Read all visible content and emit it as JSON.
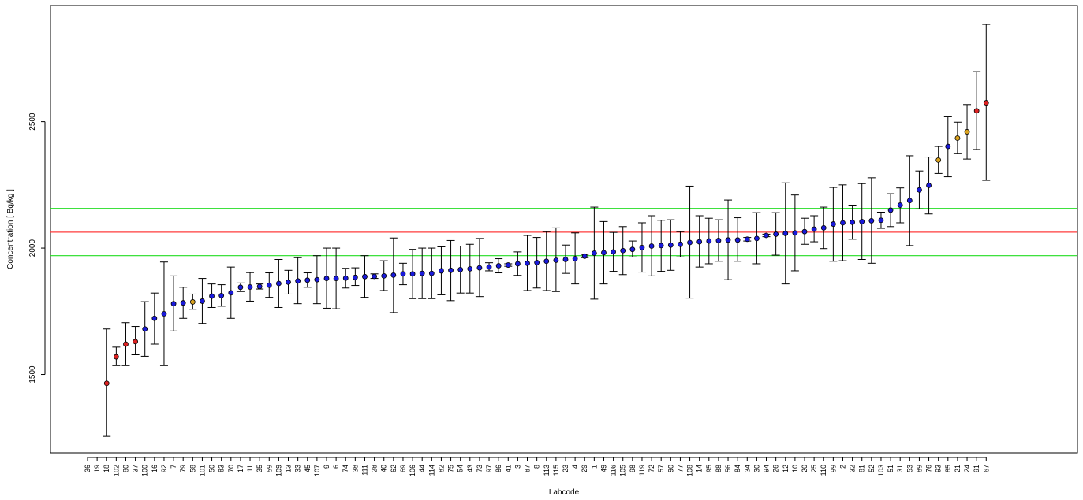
{
  "chart_data": {
    "type": "scatter",
    "xlabel": "Labcode",
    "ylabel": "Concentration [ Bq/kg ]",
    "ylim": [
      1190,
      2960
    ],
    "yticks": [
      1500,
      2000,
      2500
    ],
    "grid": false,
    "legend": "none",
    "reference_lines": [
      {
        "name": "reference value",
        "value": 2063,
        "color": "#ff3b3b"
      },
      {
        "name": "upper limit",
        "value": 2157,
        "color": "#22dd22"
      },
      {
        "name": "lower limit",
        "value": 1970,
        "color": "#22dd22"
      }
    ],
    "marker_colors": {
      "blue": "#1a1adb",
      "red": "#dd2222",
      "orange": "#d9a21f"
    },
    "points": [
      {
        "lab": "36",
        "value": null,
        "lo": null,
        "hi": null,
        "color": "blue"
      },
      {
        "lab": "19",
        "value": null,
        "lo": null,
        "hi": null,
        "color": "blue"
      },
      {
        "lab": "18",
        "value": 1465,
        "lo": 1255,
        "hi": 1680,
        "color": "red"
      },
      {
        "lab": "102",
        "value": 1570,
        "lo": 1535,
        "hi": 1608,
        "color": "red"
      },
      {
        "lab": "80",
        "value": 1620,
        "lo": 1535,
        "hi": 1705,
        "color": "red"
      },
      {
        "lab": "37",
        "value": 1630,
        "lo": 1578,
        "hi": 1690,
        "color": "red"
      },
      {
        "lab": "100",
        "value": 1680,
        "lo": 1572,
        "hi": 1788,
        "color": "blue"
      },
      {
        "lab": "16",
        "value": 1722,
        "lo": 1620,
        "hi": 1822,
        "color": "blue"
      },
      {
        "lab": "92",
        "value": 1740,
        "lo": 1535,
        "hi": 1945,
        "color": "blue"
      },
      {
        "lab": "7",
        "value": 1780,
        "lo": 1672,
        "hi": 1890,
        "color": "blue"
      },
      {
        "lab": "79",
        "value": 1783,
        "lo": 1722,
        "hi": 1845,
        "color": "blue"
      },
      {
        "lab": "58",
        "value": 1787,
        "lo": 1758,
        "hi": 1818,
        "color": "orange"
      },
      {
        "lab": "101",
        "value": 1790,
        "lo": 1702,
        "hi": 1880,
        "color": "blue"
      },
      {
        "lab": "50",
        "value": 1810,
        "lo": 1765,
        "hi": 1858,
        "color": "blue"
      },
      {
        "lab": "83",
        "value": 1812,
        "lo": 1770,
        "hi": 1855,
        "color": "blue"
      },
      {
        "lab": "70",
        "value": 1823,
        "lo": 1722,
        "hi": 1925,
        "color": "blue"
      },
      {
        "lab": "17",
        "value": 1845,
        "lo": 1828,
        "hi": 1862,
        "color": "blue"
      },
      {
        "lab": "11",
        "value": 1846,
        "lo": 1790,
        "hi": 1903,
        "color": "blue"
      },
      {
        "lab": "35",
        "value": 1848,
        "lo": 1838,
        "hi": 1858,
        "color": "blue"
      },
      {
        "lab": "59",
        "value": 1853,
        "lo": 1805,
        "hi": 1902,
        "color": "blue"
      },
      {
        "lab": "109",
        "value": 1860,
        "lo": 1765,
        "hi": 1955,
        "color": "blue"
      },
      {
        "lab": "13",
        "value": 1865,
        "lo": 1818,
        "hi": 1912,
        "color": "blue"
      },
      {
        "lab": "33",
        "value": 1870,
        "lo": 1780,
        "hi": 1962,
        "color": "blue"
      },
      {
        "lab": "45",
        "value": 1873,
        "lo": 1845,
        "hi": 1902,
        "color": "blue"
      },
      {
        "lab": "107",
        "value": 1875,
        "lo": 1780,
        "hi": 1970,
        "color": "blue"
      },
      {
        "lab": "9",
        "value": 1880,
        "lo": 1762,
        "hi": 2000,
        "color": "blue"
      },
      {
        "lab": "6",
        "value": 1880,
        "lo": 1760,
        "hi": 2000,
        "color": "blue"
      },
      {
        "lab": "74",
        "value": 1881,
        "lo": 1842,
        "hi": 1920,
        "color": "blue"
      },
      {
        "lab": "38",
        "value": 1884,
        "lo": 1852,
        "hi": 1922,
        "color": "blue"
      },
      {
        "lab": "111",
        "value": 1887,
        "lo": 1805,
        "hi": 1970,
        "color": "blue"
      },
      {
        "lab": "28",
        "value": 1888,
        "lo": 1880,
        "hi": 1898,
        "color": "blue"
      },
      {
        "lab": "40",
        "value": 1890,
        "lo": 1832,
        "hi": 1950,
        "color": "blue"
      },
      {
        "lab": "62",
        "value": 1893,
        "lo": 1745,
        "hi": 2040,
        "color": "blue"
      },
      {
        "lab": "69",
        "value": 1898,
        "lo": 1855,
        "hi": 1940,
        "color": "blue"
      },
      {
        "lab": "106",
        "value": 1898,
        "lo": 1800,
        "hi": 1995,
        "color": "blue"
      },
      {
        "lab": "44",
        "value": 1900,
        "lo": 1800,
        "hi": 2000,
        "color": "blue"
      },
      {
        "lab": "114",
        "value": 1900,
        "lo": 1800,
        "hi": 2000,
        "color": "blue"
      },
      {
        "lab": "82",
        "value": 1910,
        "lo": 1815,
        "hi": 2005,
        "color": "blue"
      },
      {
        "lab": "75",
        "value": 1912,
        "lo": 1792,
        "hi": 2030,
        "color": "blue"
      },
      {
        "lab": "54",
        "value": 1915,
        "lo": 1822,
        "hi": 2008,
        "color": "blue"
      },
      {
        "lab": "43",
        "value": 1918,
        "lo": 1822,
        "hi": 2015,
        "color": "blue"
      },
      {
        "lab": "73",
        "value": 1922,
        "lo": 1808,
        "hi": 2038,
        "color": "blue"
      },
      {
        "lab": "97",
        "value": 1925,
        "lo": 1910,
        "hi": 1942,
        "color": "blue"
      },
      {
        "lab": "86",
        "value": 1930,
        "lo": 1902,
        "hi": 1958,
        "color": "blue"
      },
      {
        "lab": "41",
        "value": 1933,
        "lo": 1928,
        "hi": 1938,
        "color": "blue"
      },
      {
        "lab": "3",
        "value": 1938,
        "lo": 1892,
        "hi": 1985,
        "color": "blue"
      },
      {
        "lab": "87",
        "value": 1940,
        "lo": 1832,
        "hi": 2050,
        "color": "blue"
      },
      {
        "lab": "8",
        "value": 1943,
        "lo": 1842,
        "hi": 2042,
        "color": "blue"
      },
      {
        "lab": "113",
        "value": 1948,
        "lo": 1832,
        "hi": 2065,
        "color": "blue"
      },
      {
        "lab": "115",
        "value": 1952,
        "lo": 1828,
        "hi": 2080,
        "color": "blue"
      },
      {
        "lab": "23",
        "value": 1955,
        "lo": 1900,
        "hi": 2012,
        "color": "blue"
      },
      {
        "lab": "4",
        "value": 1958,
        "lo": 1858,
        "hi": 2060,
        "color": "blue"
      },
      {
        "lab": "29",
        "value": 1968,
        "lo": 1962,
        "hi": 1975,
        "color": "blue"
      },
      {
        "lab": "1",
        "value": 1980,
        "lo": 1798,
        "hi": 2162,
        "color": "blue"
      },
      {
        "lab": "49",
        "value": 1982,
        "lo": 1858,
        "hi": 2105,
        "color": "blue"
      },
      {
        "lab": "116",
        "value": 1985,
        "lo": 1908,
        "hi": 2062,
        "color": "blue"
      },
      {
        "lab": "105",
        "value": 1990,
        "lo": 1895,
        "hi": 2085,
        "color": "blue"
      },
      {
        "lab": "98",
        "value": 1995,
        "lo": 1965,
        "hi": 2028,
        "color": "blue"
      },
      {
        "lab": "119",
        "value": 2002,
        "lo": 1905,
        "hi": 2100,
        "color": "blue"
      },
      {
        "lab": "72",
        "value": 2008,
        "lo": 1890,
        "hi": 2128,
        "color": "blue"
      },
      {
        "lab": "57",
        "value": 2010,
        "lo": 1908,
        "hi": 2110,
        "color": "blue"
      },
      {
        "lab": "90",
        "value": 2012,
        "lo": 1912,
        "hi": 2112,
        "color": "blue"
      },
      {
        "lab": "77",
        "value": 2015,
        "lo": 1965,
        "hi": 2065,
        "color": "blue"
      },
      {
        "lab": "108",
        "value": 2022,
        "lo": 1802,
        "hi": 2245,
        "color": "blue"
      },
      {
        "lab": "14",
        "value": 2025,
        "lo": 1925,
        "hi": 2128,
        "color": "blue"
      },
      {
        "lab": "95",
        "value": 2028,
        "lo": 1938,
        "hi": 2118,
        "color": "blue"
      },
      {
        "lab": "88",
        "value": 2030,
        "lo": 1948,
        "hi": 2112,
        "color": "blue"
      },
      {
        "lab": "56",
        "value": 2032,
        "lo": 1875,
        "hi": 2190,
        "color": "blue"
      },
      {
        "lab": "84",
        "value": 2032,
        "lo": 1948,
        "hi": 2120,
        "color": "blue"
      },
      {
        "lab": "34",
        "value": 2035,
        "lo": 2028,
        "hi": 2042,
        "color": "blue"
      },
      {
        "lab": "30",
        "value": 2038,
        "lo": 1938,
        "hi": 2140,
        "color": "blue"
      },
      {
        "lab": "94",
        "value": 2050,
        "lo": 2045,
        "hi": 2055,
        "color": "blue"
      },
      {
        "lab": "26",
        "value": 2055,
        "lo": 1972,
        "hi": 2140,
        "color": "blue"
      },
      {
        "lab": "12",
        "value": 2058,
        "lo": 1858,
        "hi": 2258,
        "color": "blue"
      },
      {
        "lab": "10",
        "value": 2060,
        "lo": 1910,
        "hi": 2210,
        "color": "blue"
      },
      {
        "lab": "20",
        "value": 2065,
        "lo": 2015,
        "hi": 2118,
        "color": "blue"
      },
      {
        "lab": "25",
        "value": 2075,
        "lo": 2025,
        "hi": 2128,
        "color": "blue"
      },
      {
        "lab": "110",
        "value": 2080,
        "lo": 1998,
        "hi": 2162,
        "color": "blue"
      },
      {
        "lab": "99",
        "value": 2095,
        "lo": 1948,
        "hi": 2240,
        "color": "blue"
      },
      {
        "lab": "2",
        "value": 2100,
        "lo": 1950,
        "hi": 2250,
        "color": "blue"
      },
      {
        "lab": "32",
        "value": 2102,
        "lo": 2035,
        "hi": 2170,
        "color": "blue"
      },
      {
        "lab": "81",
        "value": 2105,
        "lo": 1955,
        "hi": 2255,
        "color": "blue"
      },
      {
        "lab": "52",
        "value": 2108,
        "lo": 1940,
        "hi": 2278,
        "color": "blue"
      },
      {
        "lab": "103",
        "value": 2110,
        "lo": 2078,
        "hi": 2142,
        "color": "blue"
      },
      {
        "lab": "51",
        "value": 2150,
        "lo": 2085,
        "hi": 2215,
        "color": "blue"
      },
      {
        "lab": "31",
        "value": 2170,
        "lo": 2100,
        "hi": 2238,
        "color": "blue"
      },
      {
        "lab": "53",
        "value": 2188,
        "lo": 2010,
        "hi": 2365,
        "color": "blue"
      },
      {
        "lab": "89",
        "value": 2230,
        "lo": 2155,
        "hi": 2305,
        "color": "blue"
      },
      {
        "lab": "76",
        "value": 2248,
        "lo": 2135,
        "hi": 2360,
        "color": "blue"
      },
      {
        "lab": "93",
        "value": 2348,
        "lo": 2295,
        "hi": 2402,
        "color": "orange"
      },
      {
        "lab": "85",
        "value": 2402,
        "lo": 2282,
        "hi": 2522,
        "color": "blue"
      },
      {
        "lab": "21",
        "value": 2435,
        "lo": 2375,
        "hi": 2498,
        "color": "orange"
      },
      {
        "lab": "24",
        "value": 2460,
        "lo": 2352,
        "hi": 2568,
        "color": "orange"
      },
      {
        "lab": "91",
        "value": 2543,
        "lo": 2390,
        "hi": 2698,
        "color": "red"
      },
      {
        "lab": "67",
        "value": 2575,
        "lo": 2268,
        "hi": 2885,
        "color": "red"
      }
    ]
  }
}
